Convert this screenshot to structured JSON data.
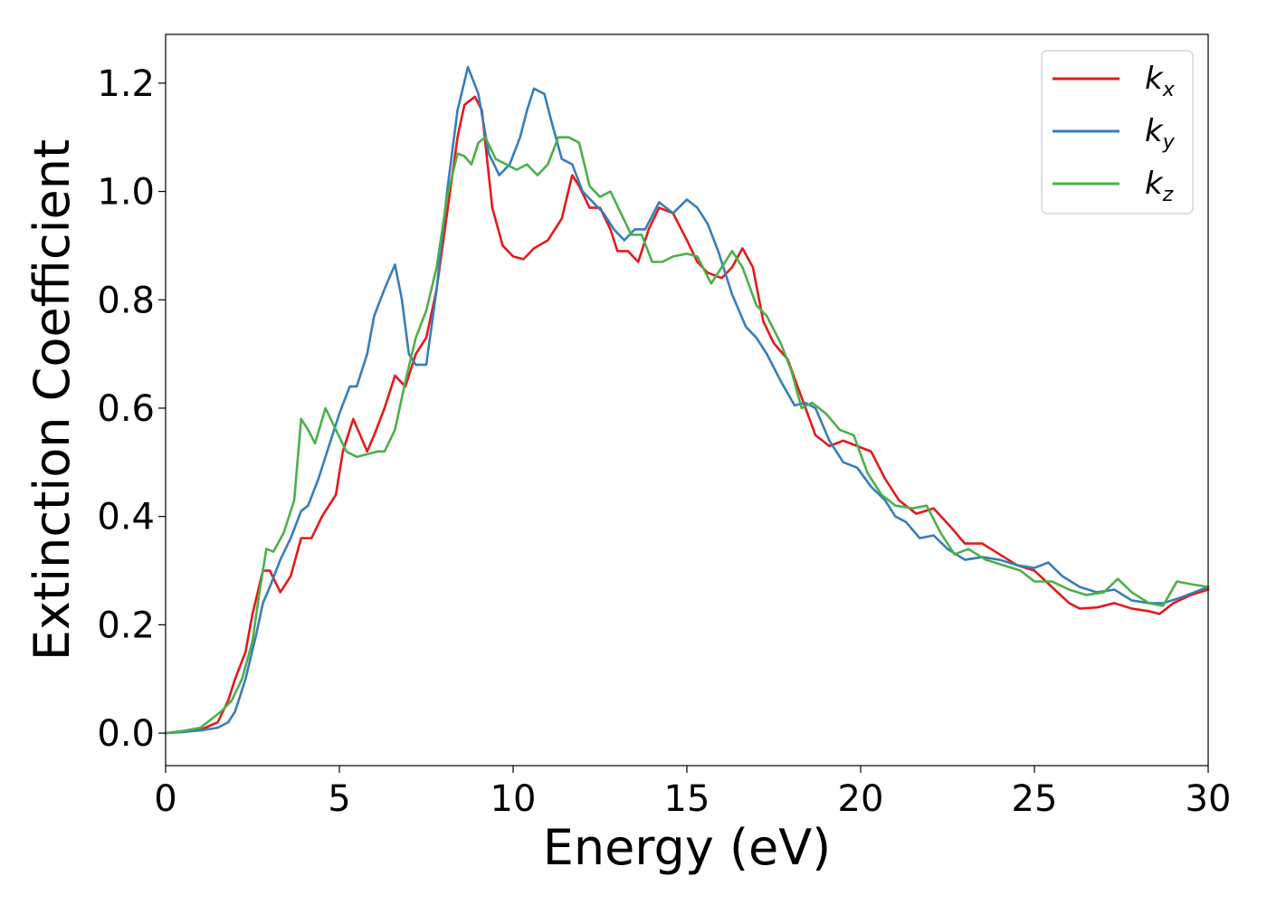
{
  "chart_data": {
    "type": "line",
    "title": "",
    "xlabel": "Energy (eV)",
    "ylabel": "Extinction Coefficient",
    "xlim": [
      0,
      30
    ],
    "ylim": [
      -0.06,
      1.29
    ],
    "x_ticks": [
      "0",
      "5",
      "10",
      "15",
      "20",
      "25",
      "30"
    ],
    "y_ticks": [
      "0.0",
      "0.2",
      "0.4",
      "0.6",
      "0.8",
      "1.0",
      "1.2"
    ],
    "grid": false,
    "legend_position": "top-right",
    "series": [
      {
        "name": "k",
        "subscript": "x",
        "color": "#e41a1c",
        "points": [
          [
            0,
            0
          ],
          [
            0.5,
            0.003
          ],
          [
            1,
            0.006
          ],
          [
            1.5,
            0.02
          ],
          [
            1.8,
            0.06
          ],
          [
            2,
            0.1
          ],
          [
            2.3,
            0.15
          ],
          [
            2.5,
            0.22
          ],
          [
            2.8,
            0.3
          ],
          [
            3,
            0.3
          ],
          [
            3.3,
            0.26
          ],
          [
            3.6,
            0.29
          ],
          [
            3.9,
            0.36
          ],
          [
            4.2,
            0.36
          ],
          [
            4.5,
            0.4
          ],
          [
            4.9,
            0.44
          ],
          [
            5.1,
            0.52
          ],
          [
            5.4,
            0.58
          ],
          [
            5.6,
            0.55
          ],
          [
            5.8,
            0.52
          ],
          [
            6,
            0.55
          ],
          [
            6.3,
            0.6
          ],
          [
            6.6,
            0.66
          ],
          [
            6.9,
            0.64
          ],
          [
            7.2,
            0.7
          ],
          [
            7.5,
            0.73
          ],
          [
            7.8,
            0.82
          ],
          [
            8.1,
            0.96
          ],
          [
            8.4,
            1.1
          ],
          [
            8.6,
            1.16
          ],
          [
            8.9,
            1.175
          ],
          [
            9.1,
            1.15
          ],
          [
            9.4,
            0.97
          ],
          [
            9.7,
            0.9
          ],
          [
            10,
            0.88
          ],
          [
            10.3,
            0.875
          ],
          [
            10.6,
            0.895
          ],
          [
            11,
            0.91
          ],
          [
            11.4,
            0.95
          ],
          [
            11.7,
            1.03
          ],
          [
            11.9,
            1.01
          ],
          [
            12.2,
            0.97
          ],
          [
            12.5,
            0.97
          ],
          [
            12.8,
            0.93
          ],
          [
            13,
            0.89
          ],
          [
            13.3,
            0.89
          ],
          [
            13.6,
            0.87
          ],
          [
            13.9,
            0.93
          ],
          [
            14.2,
            0.97
          ],
          [
            14.6,
            0.96
          ],
          [
            15,
            0.91
          ],
          [
            15.3,
            0.87
          ],
          [
            15.6,
            0.85
          ],
          [
            16,
            0.84
          ],
          [
            16.3,
            0.86
          ],
          [
            16.6,
            0.895
          ],
          [
            16.9,
            0.86
          ],
          [
            17.2,
            0.76
          ],
          [
            17.5,
            0.72
          ],
          [
            17.9,
            0.69
          ],
          [
            18.3,
            0.62
          ],
          [
            18.7,
            0.55
          ],
          [
            19.1,
            0.53
          ],
          [
            19.5,
            0.54
          ],
          [
            19.9,
            0.53
          ],
          [
            20.3,
            0.52
          ],
          [
            20.7,
            0.47
          ],
          [
            21.1,
            0.43
          ],
          [
            21.6,
            0.405
          ],
          [
            22.1,
            0.415
          ],
          [
            22.6,
            0.38
          ],
          [
            23,
            0.35
          ],
          [
            23.5,
            0.35
          ],
          [
            24,
            0.33
          ],
          [
            24.5,
            0.31
          ],
          [
            25,
            0.3
          ],
          [
            25.5,
            0.27
          ],
          [
            26,
            0.24
          ],
          [
            26.3,
            0.23
          ],
          [
            26.8,
            0.232
          ],
          [
            27.3,
            0.24
          ],
          [
            27.8,
            0.23
          ],
          [
            28.3,
            0.225
          ],
          [
            28.6,
            0.22
          ],
          [
            29,
            0.24
          ],
          [
            29.5,
            0.255
          ],
          [
            30,
            0.265
          ]
        ]
      },
      {
        "name": "k",
        "subscript": "y",
        "color": "#377eb8",
        "points": [
          [
            0,
            0
          ],
          [
            0.5,
            0.002
          ],
          [
            1,
            0.005
          ],
          [
            1.5,
            0.01
          ],
          [
            1.8,
            0.02
          ],
          [
            2,
            0.04
          ],
          [
            2.3,
            0.1
          ],
          [
            2.6,
            0.18
          ],
          [
            2.8,
            0.24
          ],
          [
            3,
            0.27
          ],
          [
            3.3,
            0.32
          ],
          [
            3.6,
            0.36
          ],
          [
            3.9,
            0.41
          ],
          [
            4.1,
            0.42
          ],
          [
            4.4,
            0.47
          ],
          [
            4.7,
            0.53
          ],
          [
            5,
            0.59
          ],
          [
            5.3,
            0.64
          ],
          [
            5.5,
            0.64
          ],
          [
            5.8,
            0.7
          ],
          [
            6,
            0.77
          ],
          [
            6.3,
            0.82
          ],
          [
            6.6,
            0.865
          ],
          [
            6.8,
            0.8
          ],
          [
            7,
            0.7
          ],
          [
            7.2,
            0.68
          ],
          [
            7.5,
            0.68
          ],
          [
            7.8,
            0.82
          ],
          [
            8.1,
            1
          ],
          [
            8.4,
            1.15
          ],
          [
            8.7,
            1.23
          ],
          [
            9,
            1.18
          ],
          [
            9.3,
            1.07
          ],
          [
            9.6,
            1.03
          ],
          [
            9.9,
            1.05
          ],
          [
            10.2,
            1.1
          ],
          [
            10.4,
            1.15
          ],
          [
            10.6,
            1.19
          ],
          [
            10.9,
            1.18
          ],
          [
            11.1,
            1.13
          ],
          [
            11.4,
            1.06
          ],
          [
            11.7,
            1.05
          ],
          [
            12,
            1
          ],
          [
            12.3,
            0.98
          ],
          [
            12.6,
            0.96
          ],
          [
            12.9,
            0.93
          ],
          [
            13.2,
            0.91
          ],
          [
            13.5,
            0.93
          ],
          [
            13.8,
            0.93
          ],
          [
            14.2,
            0.98
          ],
          [
            14.6,
            0.96
          ],
          [
            15,
            0.985
          ],
          [
            15.3,
            0.97
          ],
          [
            15.6,
            0.94
          ],
          [
            15.9,
            0.89
          ],
          [
            16.3,
            0.81
          ],
          [
            16.7,
            0.75
          ],
          [
            17,
            0.73
          ],
          [
            17.3,
            0.7
          ],
          [
            17.7,
            0.65
          ],
          [
            18.1,
            0.605
          ],
          [
            18.4,
            0.61
          ],
          [
            18.7,
            0.6
          ],
          [
            19.1,
            0.54
          ],
          [
            19.5,
            0.5
          ],
          [
            19.9,
            0.49
          ],
          [
            20.3,
            0.455
          ],
          [
            20.7,
            0.43
          ],
          [
            21,
            0.4
          ],
          [
            21.3,
            0.39
          ],
          [
            21.7,
            0.36
          ],
          [
            22.1,
            0.365
          ],
          [
            22.5,
            0.34
          ],
          [
            23,
            0.32
          ],
          [
            23.5,
            0.325
          ],
          [
            24,
            0.32
          ],
          [
            24.5,
            0.31
          ],
          [
            25,
            0.305
          ],
          [
            25.4,
            0.315
          ],
          [
            25.8,
            0.29
          ],
          [
            26.3,
            0.27
          ],
          [
            26.8,
            0.26
          ],
          [
            27.3,
            0.265
          ],
          [
            27.8,
            0.245
          ],
          [
            28.3,
            0.24
          ],
          [
            28.7,
            0.24
          ],
          [
            29.2,
            0.25
          ],
          [
            29.6,
            0.26
          ],
          [
            30,
            0.27
          ]
        ]
      },
      {
        "name": "k",
        "subscript": "z",
        "color": "#4daf4a",
        "points": [
          [
            0,
            0
          ],
          [
            0.5,
            0.004
          ],
          [
            1,
            0.01
          ],
          [
            1.3,
            0.025
          ],
          [
            1.6,
            0.04
          ],
          [
            1.9,
            0.06
          ],
          [
            2.2,
            0.1
          ],
          [
            2.5,
            0.17
          ],
          [
            2.7,
            0.26
          ],
          [
            2.9,
            0.34
          ],
          [
            3.1,
            0.335
          ],
          [
            3.4,
            0.37
          ],
          [
            3.7,
            0.43
          ],
          [
            3.9,
            0.58
          ],
          [
            4.1,
            0.56
          ],
          [
            4.3,
            0.535
          ],
          [
            4.6,
            0.6
          ],
          [
            4.9,
            0.56
          ],
          [
            5.2,
            0.52
          ],
          [
            5.5,
            0.51
          ],
          [
            5.8,
            0.515
          ],
          [
            6.1,
            0.52
          ],
          [
            6.3,
            0.52
          ],
          [
            6.6,
            0.56
          ],
          [
            6.9,
            0.65
          ],
          [
            7.2,
            0.73
          ],
          [
            7.5,
            0.78
          ],
          [
            7.8,
            0.86
          ],
          [
            8.1,
            0.99
          ],
          [
            8.4,
            1.07
          ],
          [
            8.6,
            1.065
          ],
          [
            8.8,
            1.05
          ],
          [
            9,
            1.09
          ],
          [
            9.2,
            1.1
          ],
          [
            9.5,
            1.06
          ],
          [
            9.8,
            1.05
          ],
          [
            10.1,
            1.04
          ],
          [
            10.4,
            1.05
          ],
          [
            10.7,
            1.03
          ],
          [
            11,
            1.05
          ],
          [
            11.3,
            1.1
          ],
          [
            11.6,
            1.1
          ],
          [
            11.9,
            1.09
          ],
          [
            12.2,
            1.01
          ],
          [
            12.5,
            0.99
          ],
          [
            12.8,
            1
          ],
          [
            13.1,
            0.96
          ],
          [
            13.4,
            0.92
          ],
          [
            13.7,
            0.92
          ],
          [
            14,
            0.87
          ],
          [
            14.3,
            0.87
          ],
          [
            14.6,
            0.88
          ],
          [
            15,
            0.885
          ],
          [
            15.3,
            0.88
          ],
          [
            15.7,
            0.83
          ],
          [
            16,
            0.86
          ],
          [
            16.3,
            0.89
          ],
          [
            16.6,
            0.86
          ],
          [
            17,
            0.79
          ],
          [
            17.3,
            0.77
          ],
          [
            17.7,
            0.72
          ],
          [
            18,
            0.67
          ],
          [
            18.3,
            0.6
          ],
          [
            18.6,
            0.61
          ],
          [
            19,
            0.59
          ],
          [
            19.4,
            0.56
          ],
          [
            19.8,
            0.55
          ],
          [
            20.2,
            0.48
          ],
          [
            20.6,
            0.44
          ],
          [
            21,
            0.42
          ],
          [
            21.5,
            0.415
          ],
          [
            21.9,
            0.42
          ],
          [
            22.3,
            0.37
          ],
          [
            22.7,
            0.33
          ],
          [
            23.1,
            0.34
          ],
          [
            23.6,
            0.32
          ],
          [
            24.1,
            0.31
          ],
          [
            24.6,
            0.3
          ],
          [
            25,
            0.28
          ],
          [
            25.5,
            0.28
          ],
          [
            26,
            0.265
          ],
          [
            26.5,
            0.255
          ],
          [
            27,
            0.26
          ],
          [
            27.4,
            0.285
          ],
          [
            27.8,
            0.26
          ],
          [
            28.3,
            0.24
          ],
          [
            28.7,
            0.235
          ],
          [
            29.1,
            0.28
          ],
          [
            29.5,
            0.275
          ],
          [
            30,
            0.27
          ]
        ]
      }
    ]
  }
}
